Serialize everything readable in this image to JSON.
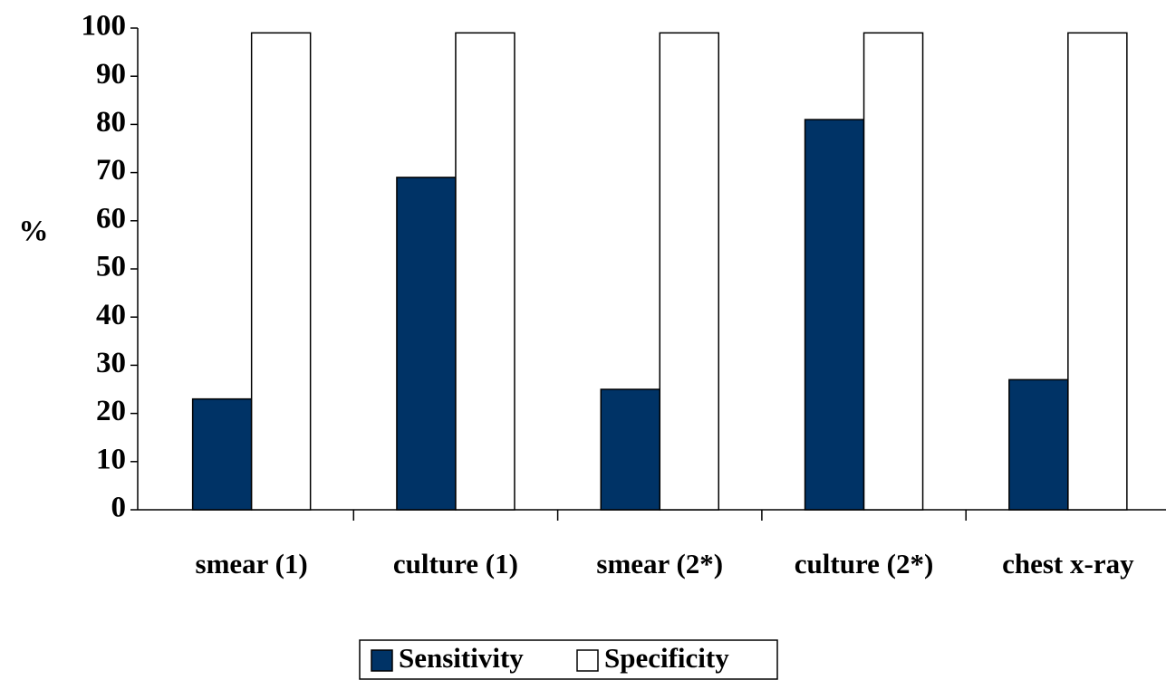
{
  "chart_data": {
    "type": "bar",
    "y_label": "%",
    "categories": [
      "smear (1)",
      "culture (1)",
      "smear (2*)",
      "culture (2*)",
      "chest x-ray"
    ],
    "series": [
      {
        "name": "Sensitivity",
        "color": "#003366",
        "values": [
          23,
          69,
          25,
          81,
          27
        ]
      },
      {
        "name": "Specificity",
        "color": "#ffffff",
        "values": [
          99,
          99,
          99,
          99,
          99
        ]
      }
    ],
    "ylim": [
      0,
      100
    ],
    "yticks": [
      0,
      10,
      20,
      30,
      40,
      50,
      60,
      70,
      80,
      90,
      100
    ],
    "legend": "bottom"
  }
}
